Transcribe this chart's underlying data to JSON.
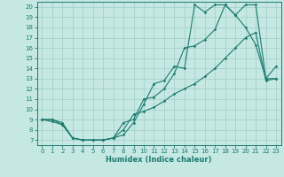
{
  "xlabel": "Humidex (Indice chaleur)",
  "xlim": [
    -0.5,
    23.5
  ],
  "ylim": [
    6.5,
    20.5
  ],
  "xticks": [
    0,
    1,
    2,
    3,
    4,
    5,
    6,
    7,
    8,
    9,
    10,
    11,
    12,
    13,
    14,
    15,
    16,
    17,
    18,
    19,
    20,
    21,
    22,
    23
  ],
  "yticks": [
    7,
    8,
    9,
    10,
    11,
    12,
    13,
    14,
    15,
    16,
    17,
    18,
    19,
    20
  ],
  "bg_color": "#c5e8e3",
  "line_color": "#1e7b70",
  "grid_color": "#a0ccca",
  "curve1_x": [
    0,
    1,
    2,
    3,
    4,
    5,
    6,
    7,
    8,
    9,
    10,
    11,
    12,
    13,
    14,
    15,
    16,
    17,
    18,
    19,
    20,
    21,
    22,
    23
  ],
  "curve1_y": [
    9.0,
    9.0,
    8.7,
    7.2,
    7.0,
    7.0,
    7.0,
    7.2,
    7.5,
    8.7,
    10.5,
    12.5,
    12.8,
    14.2,
    14.0,
    20.2,
    19.5,
    20.2,
    20.2,
    19.2,
    18.0,
    16.3,
    13.0,
    14.2
  ],
  "curve2_x": [
    0,
    1,
    2,
    3,
    4,
    5,
    6,
    7,
    8,
    9,
    10,
    11,
    12,
    13,
    14,
    15,
    16,
    17,
    18,
    19,
    20,
    21,
    22,
    23
  ],
  "curve2_y": [
    9.0,
    8.8,
    8.5,
    7.2,
    7.0,
    7.0,
    7.0,
    7.2,
    8.7,
    9.0,
    11.0,
    11.2,
    12.0,
    13.5,
    16.0,
    16.2,
    16.8,
    17.8,
    20.2,
    19.2,
    20.2,
    20.2,
    13.0,
    13.0
  ],
  "curve3_x": [
    0,
    1,
    2,
    3,
    4,
    5,
    6,
    7,
    8,
    9,
    10,
    11,
    12,
    13,
    14,
    15,
    16,
    17,
    18,
    19,
    20,
    21,
    22,
    23
  ],
  "curve3_y": [
    9.0,
    9.0,
    8.5,
    7.2,
    7.0,
    7.0,
    7.0,
    7.2,
    8.0,
    9.5,
    9.8,
    10.2,
    10.8,
    11.5,
    12.0,
    12.5,
    13.2,
    14.0,
    15.0,
    16.0,
    17.0,
    17.5,
    12.8,
    13.0
  ],
  "marker_size": 1.8,
  "line_width": 0.8,
  "tick_fontsize": 5.0,
  "xlabel_fontsize": 6.0,
  "xlabel_fontweight": "bold"
}
